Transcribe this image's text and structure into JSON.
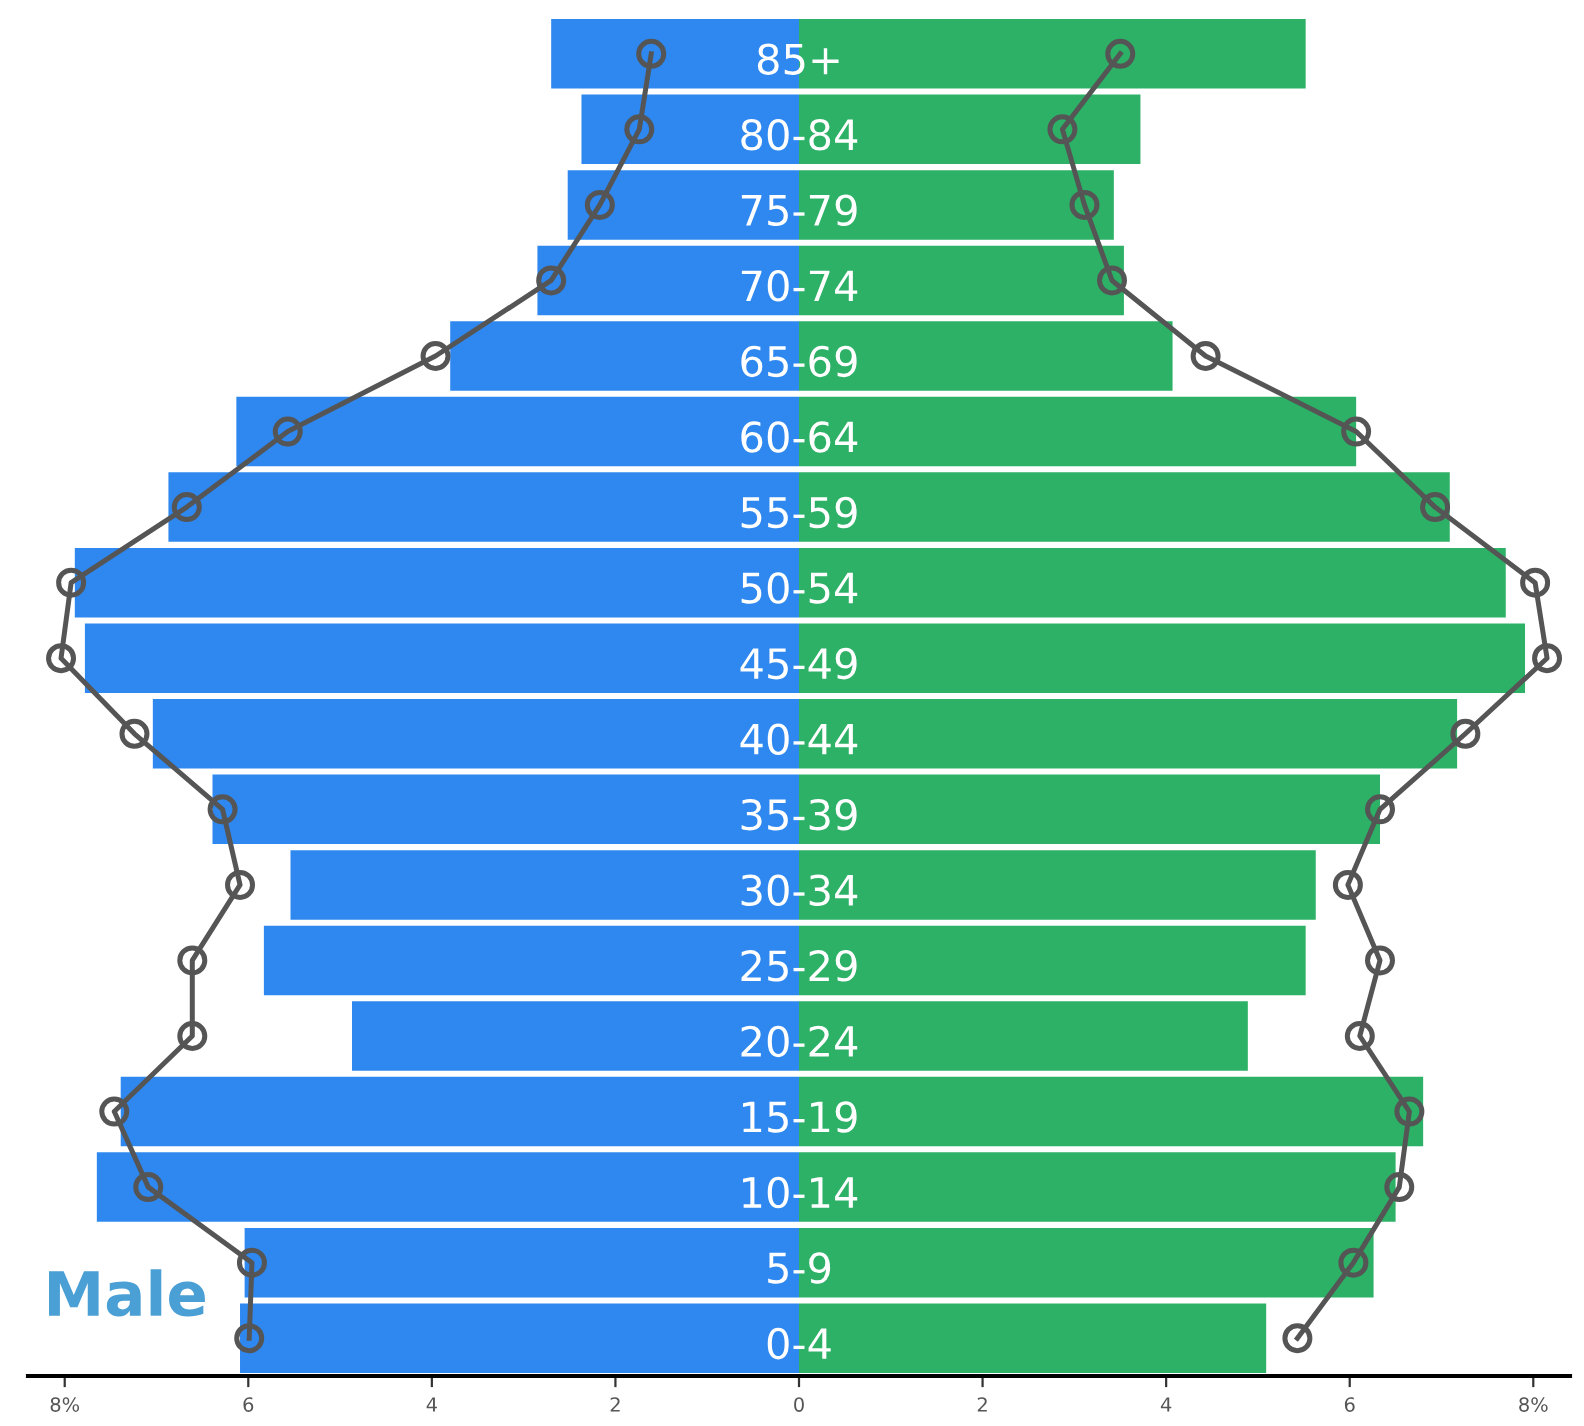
{
  "chart_data": {
    "type": "bar",
    "orientation": "horizontal",
    "stacked": true,
    "categories": [
      "85+",
      "80-84",
      "75-79",
      "70-74",
      "65-69",
      "60-64",
      "55-59",
      "50-54",
      "45-49",
      "40-44",
      "35-39",
      "30-34",
      "25-29",
      "20-24",
      "15-19",
      "10-14",
      "5-9",
      "0-4"
    ],
    "series": [
      {
        "color": "#2e88f0",
        "values": [
          -2.7,
          -2.37,
          -2.52,
          -2.85,
          -3.8,
          -6.13,
          -6.87,
          -7.89,
          -7.78,
          -7.04,
          -6.39,
          -5.54,
          -5.83,
          -4.87,
          -7.39,
          -7.65,
          -6.04,
          -6.09
        ]
      },
      {
        "color": "#2db166",
        "values": [
          5.52,
          3.72,
          3.43,
          3.54,
          4.07,
          6.07,
          7.09,
          7.7,
          7.91,
          7.17,
          6.33,
          5.63,
          5.52,
          4.89,
          6.8,
          6.5,
          6.26,
          5.09
        ]
      },
      {
        "type": "line",
        "color": "#555555",
        "marker": "circle",
        "values": [
          -1.61,
          -1.74,
          -2.17,
          -2.7,
          -3.96,
          -5.57,
          -6.67,
          -7.93,
          -8.04,
          -7.24,
          -6.28,
          -6.09,
          -6.61,
          -6.61,
          -7.46,
          -7.09,
          -5.96,
          -5.99
        ]
      },
      {
        "type": "line",
        "color": "#555555",
        "marker": "circle",
        "values": [
          3.5,
          2.87,
          3.11,
          3.41,
          4.43,
          6.07,
          6.93,
          8.02,
          8.15,
          7.26,
          6.33,
          5.98,
          6.33,
          6.11,
          6.65,
          6.54,
          6.04,
          5.43
        ]
      }
    ],
    "xlim": [
      -8.4,
      8.4
    ],
    "xticks": [
      {
        "value": -8,
        "label": "8%"
      },
      {
        "value": -6,
        "label": "6"
      },
      {
        "value": -4,
        "label": "4"
      },
      {
        "value": -2,
        "label": "2"
      },
      0,
      2,
      4,
      6,
      {
        "value": 8,
        "label": "8%"
      }
    ],
    "annotations": [
      "Male"
    ],
    "grid": false,
    "legend": false
  }
}
